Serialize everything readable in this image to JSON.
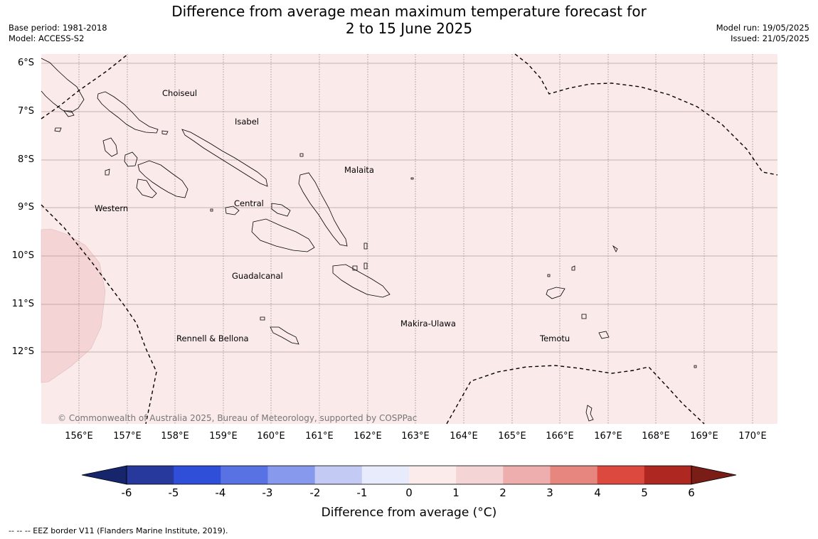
{
  "title_line1": "Difference from average mean maximum temperature forecast for",
  "title_line2": "2 to 15 June 2025",
  "base_period": "Base period: 1981-2018",
  "model": "Model: ACCESS-S2",
  "model_run": "Model run: 19/05/2025",
  "issued": "Issued: 21/05/2025",
  "lat_labels": [
    "6°S",
    "7°S",
    "8°S",
    "9°S",
    "10°S",
    "11°S",
    "12°S"
  ],
  "lon_labels": [
    "156°E",
    "157°E",
    "158°E",
    "159°E",
    "160°E",
    "161°E",
    "162°E",
    "163°E",
    "164°E",
    "165°E",
    "166°E",
    "167°E",
    "168°E",
    "169°E",
    "170°E"
  ],
  "regions": {
    "choiseul": "Choiseul",
    "isabel": "Isabel",
    "malaita": "Malaita",
    "western": "Western",
    "central": "Central",
    "guadalcanal": "Guadalcanal",
    "makira": "Makira-Ulawa",
    "rennell": "Rennell & Bellona",
    "temotu": "Temotu"
  },
  "copyright": "© Commonwealth of Australia 2025, Bureau of Meteorology, supported by COSPPac",
  "colorbar": {
    "ticks": [
      "-6",
      "-5",
      "-4",
      "-3",
      "-2",
      "-1",
      "0",
      "1",
      "2",
      "3",
      "4",
      "5",
      "6"
    ],
    "colors": [
      "#27399d",
      "#2f4fd8",
      "#5872e3",
      "#8699ec",
      "#c3cbf5",
      "#e8ebfb",
      "#fbebeb",
      "#f4d4d4",
      "#eeaeae",
      "#e6867f",
      "#dc4a3f",
      "#ae2821"
    ],
    "under_color": "#17266c",
    "over_color": "#7a1d17",
    "label": "Difference from average (°C)"
  },
  "map_colors": {
    "background": "#fbeaea",
    "warm_patch": "#f4d4d4"
  },
  "footnote": "--  --  -- EEZ border V11 (Flanders Marine Institute, 2019)."
}
